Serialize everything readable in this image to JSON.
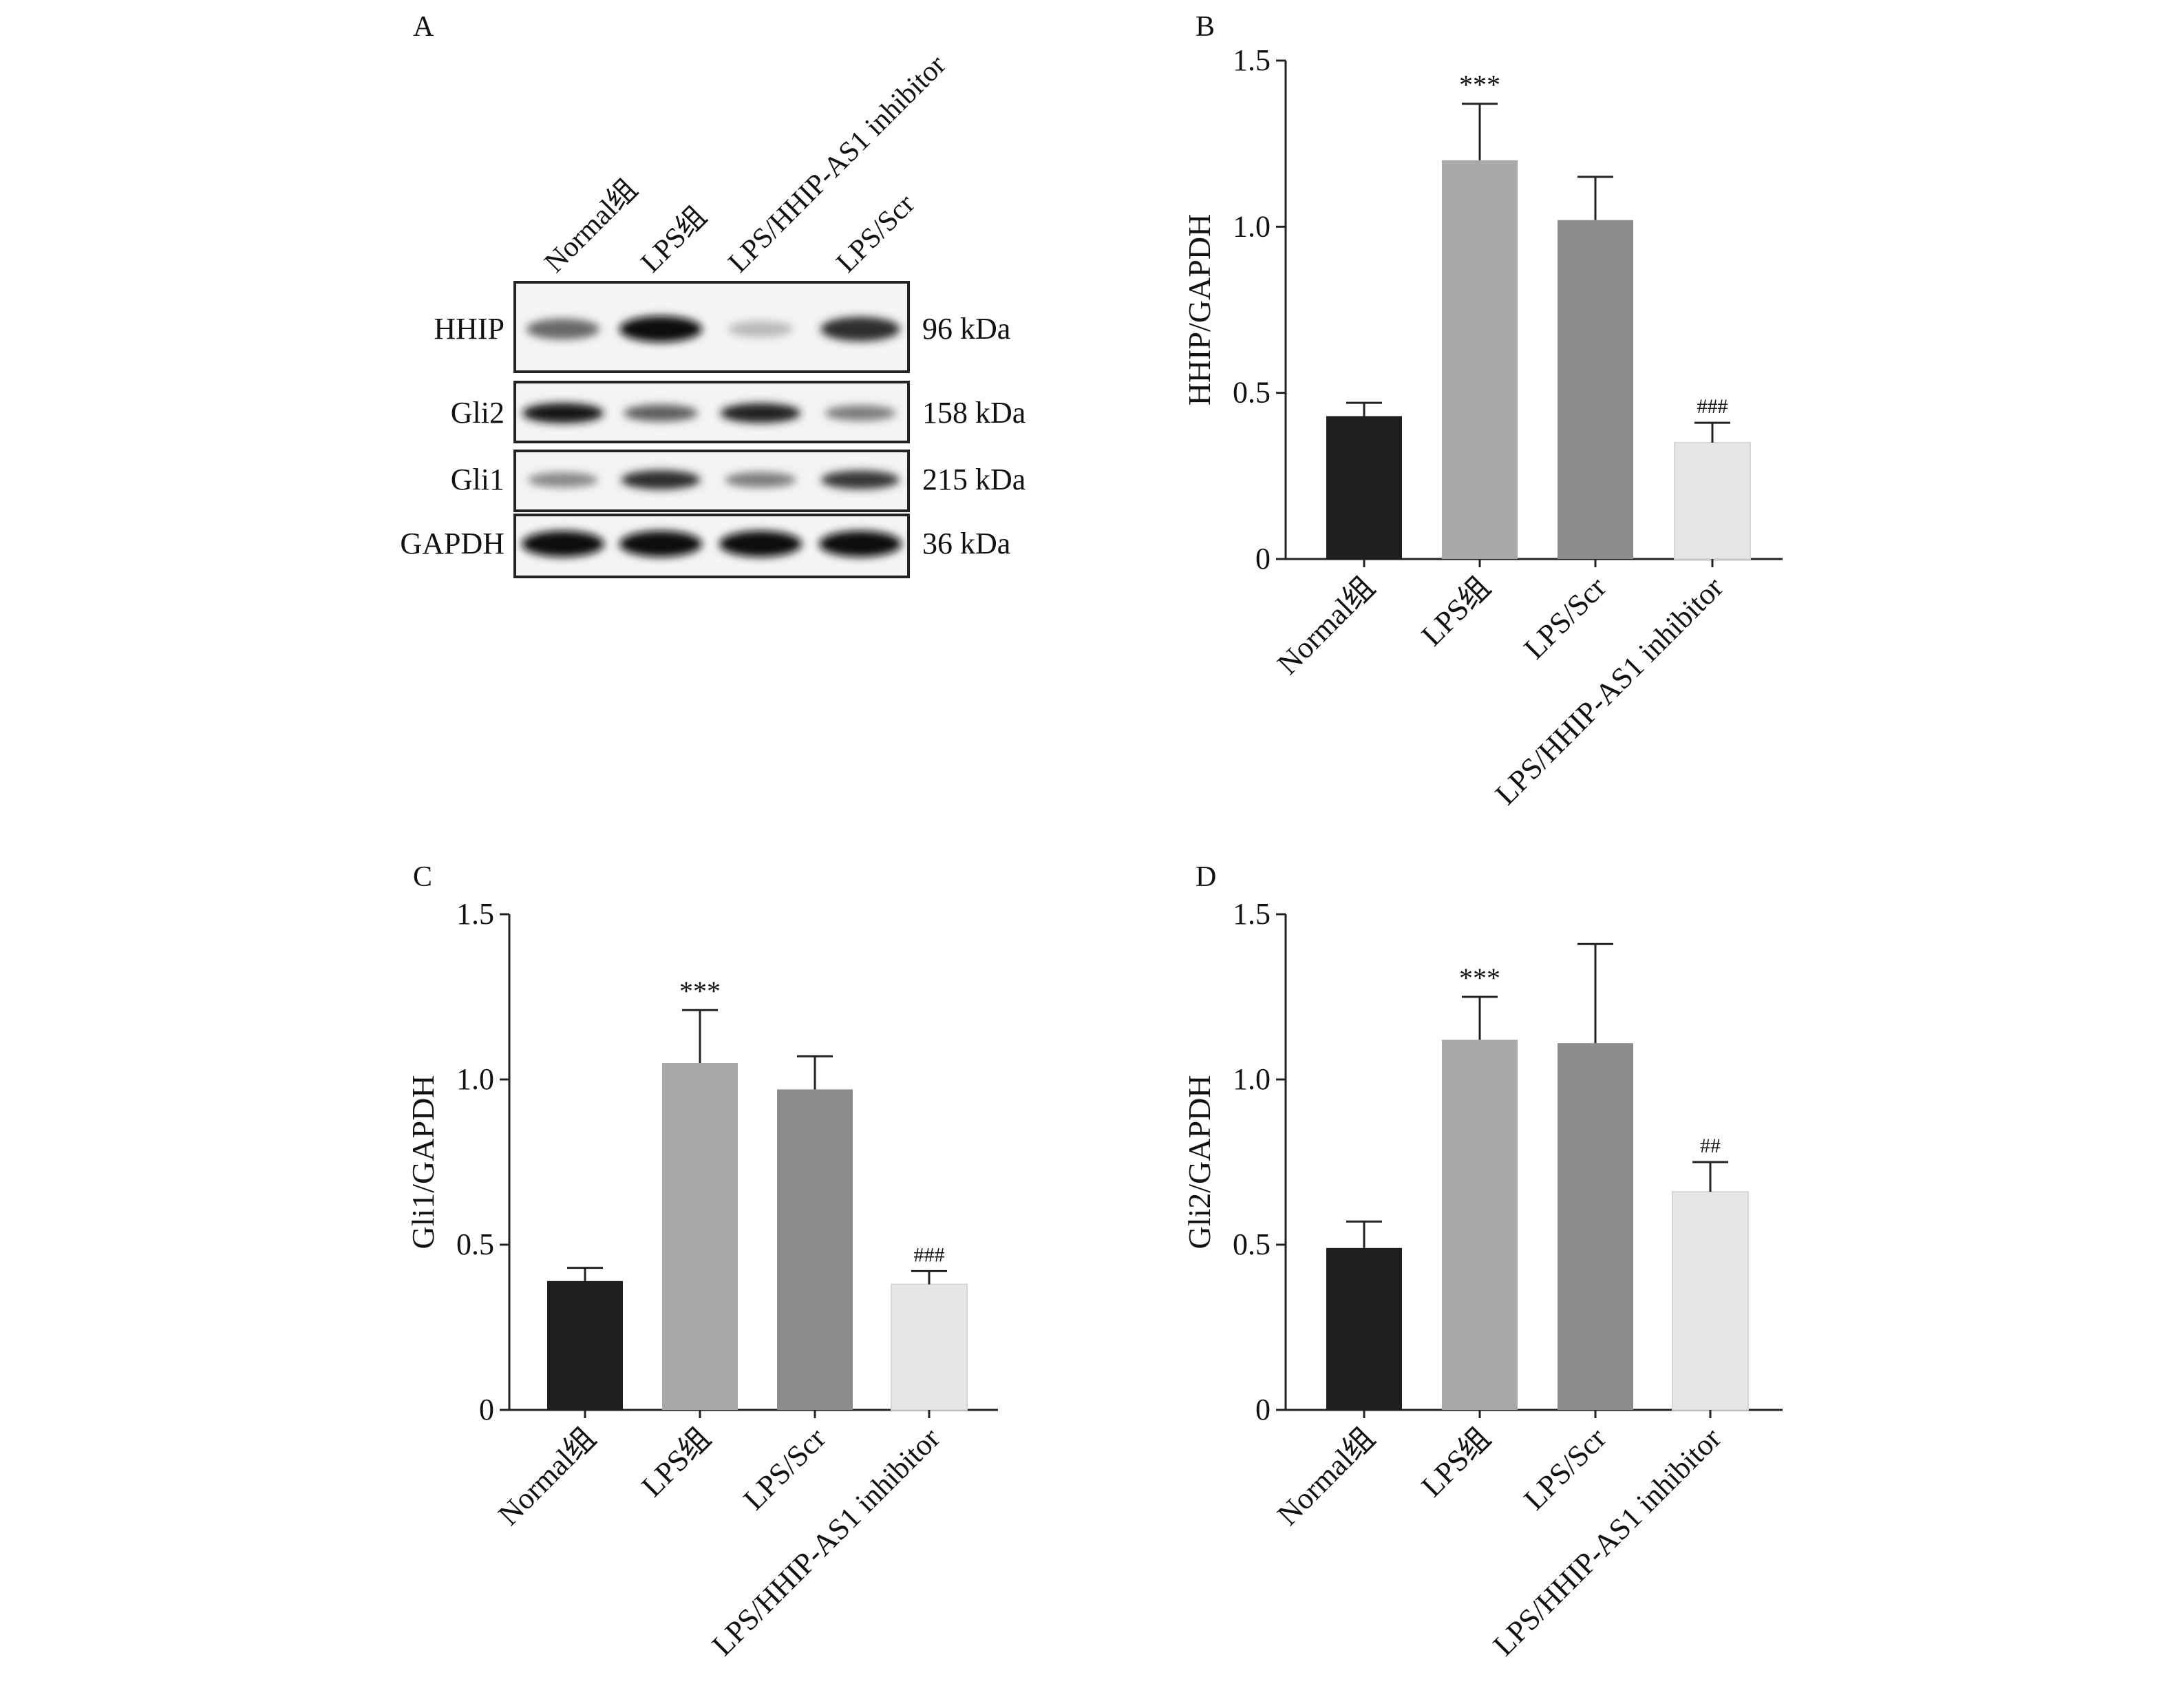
{
  "panel_a": {
    "label": "A",
    "lanes": [
      "Normal组",
      "LPS组",
      "LPS/HHIP-AS1 inhibitor",
      "LPS/Scr"
    ],
    "blots": [
      {
        "protein": "HHIP",
        "size": "96 kDa",
        "intensity": [
          0.55,
          1.0,
          0.15,
          0.85
        ]
      },
      {
        "protein": "Gli2",
        "size": "158 kDa",
        "intensity": [
          0.95,
          0.6,
          0.9,
          0.45
        ]
      },
      {
        "protein": "Gli1",
        "size": "215 kDa",
        "intensity": [
          0.4,
          0.85,
          0.45,
          0.8
        ]
      },
      {
        "protein": "GAPDH",
        "size": "36 kDa",
        "intensity": [
          1.0,
          1.0,
          1.0,
          1.0
        ]
      }
    ]
  },
  "chart_data": [
    {
      "panel": "B",
      "type": "bar",
      "categories": [
        "Normal组",
        "LPS组",
        "LPS/Scr",
        "LPS/HHIP-AS1 inhibitor"
      ],
      "values": [
        0.43,
        1.2,
        1.02,
        0.35
      ],
      "errors": [
        0.04,
        0.17,
        0.13,
        0.06
      ],
      "annotations": [
        "",
        "***",
        "",
        "###"
      ],
      "colors": [
        "#1e1e1e",
        "#a8a8a8",
        "#8c8c8c",
        "#e6e6e6"
      ],
      "ylabel": "HHIP/GAPDH",
      "ylim": [
        0,
        1.5
      ],
      "yticks": [
        "0",
        "0.5",
        "1.0",
        "1.5"
      ]
    },
    {
      "panel": "C",
      "type": "bar",
      "categories": [
        "Normal组",
        "LPS组",
        "LPS/Scr",
        "LPS/HHIP-AS1 inhibitor"
      ],
      "values": [
        0.39,
        1.05,
        0.97,
        0.38
      ],
      "errors": [
        0.04,
        0.16,
        0.1,
        0.04
      ],
      "annotations": [
        "",
        "***",
        "",
        "###"
      ],
      "colors": [
        "#1e1e1e",
        "#a8a8a8",
        "#8c8c8c",
        "#e6e6e6"
      ],
      "ylabel": "Gli1/GAPDH",
      "ylim": [
        0,
        1.5
      ],
      "yticks": [
        "0",
        "0.5",
        "1.0",
        "1.5"
      ]
    },
    {
      "panel": "D",
      "type": "bar",
      "categories": [
        "Normal组",
        "LPS组",
        "LPS/Scr",
        "LPS/HHIP-AS1 inhibitor"
      ],
      "values": [
        0.49,
        1.12,
        1.11,
        0.66
      ],
      "errors": [
        0.08,
        0.13,
        0.3,
        0.09
      ],
      "annotations": [
        "",
        "***",
        "",
        "##"
      ],
      "colors": [
        "#1e1e1e",
        "#a8a8a8",
        "#8c8c8c",
        "#e6e6e6"
      ],
      "ylabel": "Gli2/GAPDH",
      "ylim": [
        0,
        1.5
      ],
      "yticks": [
        "0",
        "0.5",
        "1.0",
        "1.5"
      ]
    }
  ]
}
